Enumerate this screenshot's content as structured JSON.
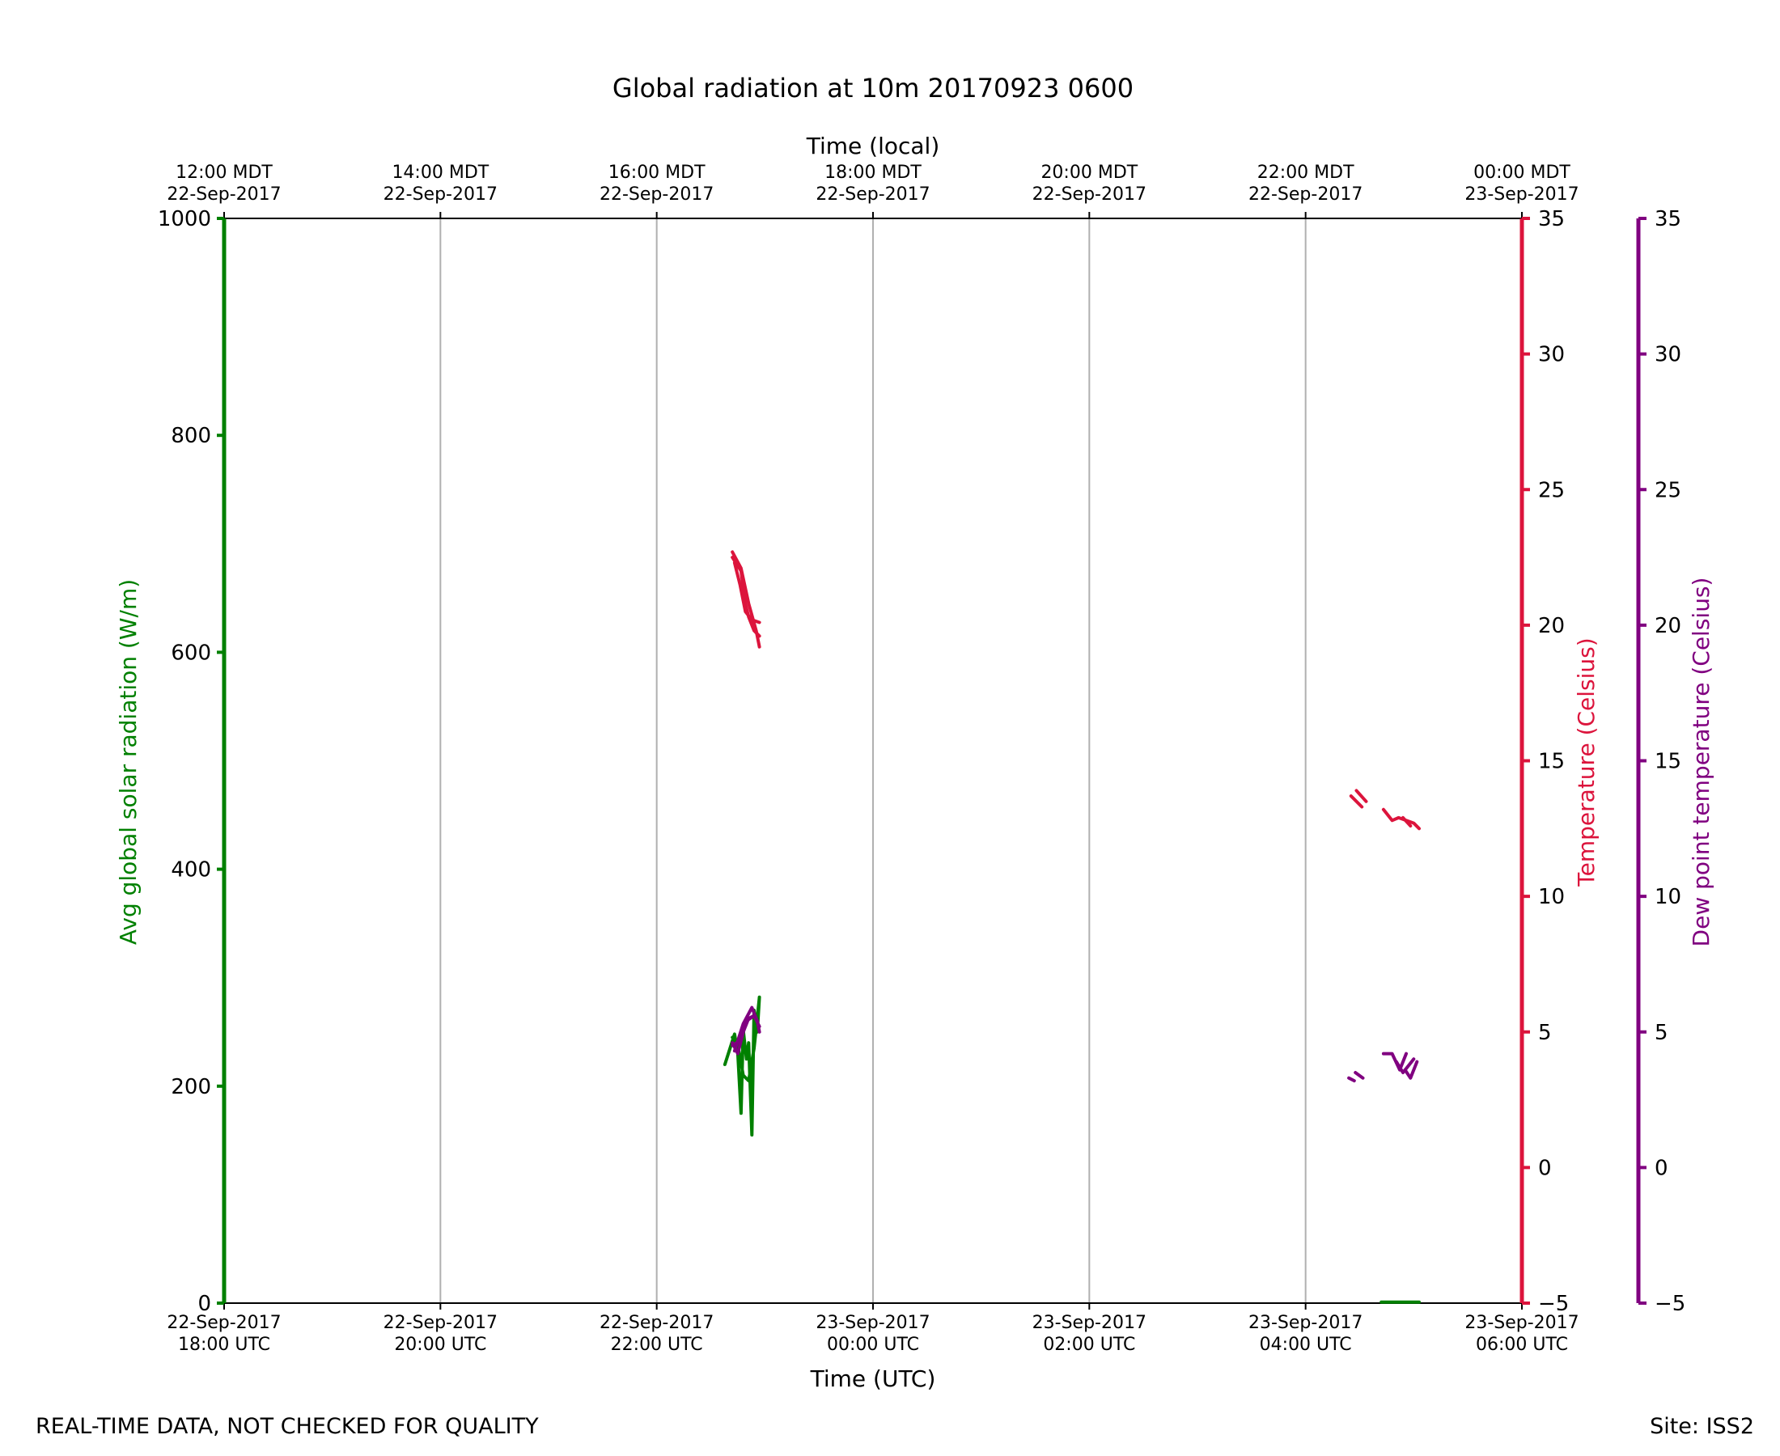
{
  "chart_data": {
    "type": "line",
    "title": "Global radiation at 10m 20170923 0600",
    "x_bottom": {
      "label": "Time (UTC)",
      "range_hours_utc": [
        18,
        30
      ],
      "ticks": [
        {
          "hour": 18,
          "date": "22-Sep-2017",
          "time": "18:00 UTC"
        },
        {
          "hour": 20,
          "date": "22-Sep-2017",
          "time": "20:00 UTC"
        },
        {
          "hour": 22,
          "date": "22-Sep-2017",
          "time": "22:00 UTC"
        },
        {
          "hour": 24,
          "date": "23-Sep-2017",
          "time": "00:00 UTC"
        },
        {
          "hour": 26,
          "date": "23-Sep-2017",
          "time": "02:00 UTC"
        },
        {
          "hour": 28,
          "date": "23-Sep-2017",
          "time": "04:00 UTC"
        },
        {
          "hour": 30,
          "date": "23-Sep-2017",
          "time": "06:00 UTC"
        }
      ]
    },
    "x_top": {
      "label": "Time (local)",
      "ticks": [
        {
          "hour": 18,
          "time": "12:00 MDT",
          "date": "22-Sep-2017"
        },
        {
          "hour": 20,
          "time": "14:00 MDT",
          "date": "22-Sep-2017"
        },
        {
          "hour": 22,
          "time": "16:00 MDT",
          "date": "22-Sep-2017"
        },
        {
          "hour": 24,
          "time": "18:00 MDT",
          "date": "22-Sep-2017"
        },
        {
          "hour": 26,
          "time": "20:00 MDT",
          "date": "22-Sep-2017"
        },
        {
          "hour": 28,
          "time": "22:00 MDT",
          "date": "22-Sep-2017"
        },
        {
          "hour": 30,
          "time": "00:00 MDT",
          "date": "23-Sep-2017"
        }
      ]
    },
    "y_left": {
      "label": "Avg global solar radiation (W/m)",
      "ylim": [
        0,
        1000
      ],
      "ticks": [
        "0",
        "200",
        "400",
        "600",
        "800",
        "1000"
      ],
      "color": "#008000"
    },
    "y_right_temp": {
      "label": "Temperature (Celsius)",
      "ylim": [
        -5,
        35
      ],
      "ticks": [
        "−5",
        "0",
        "5",
        "10",
        "15",
        "20",
        "25",
        "30",
        "35"
      ],
      "color": "#dc143c"
    },
    "y_right_dew": {
      "label": "Dew point temperature (Celsius)",
      "ylim": [
        -5,
        35
      ],
      "ticks": [
        "−5",
        "0",
        "5",
        "10",
        "15",
        "20",
        "25",
        "30",
        "35"
      ],
      "color": "#800080"
    },
    "grid": "vertical",
    "series": [
      {
        "name": "Avg global solar radiation",
        "axis": "y_left",
        "color": "#008000",
        "segments": [
          [
            [
              22.63,
              220
            ],
            [
              22.72,
              248
            ],
            [
              22.75,
              230
            ],
            [
              22.78,
              175
            ],
            [
              22.8,
              252
            ],
            [
              22.83,
              225
            ],
            [
              22.85,
              240
            ],
            [
              22.88,
              155
            ],
            [
              22.9,
              270
            ],
            [
              22.93,
              250
            ],
            [
              22.95,
              282
            ],
            [
              22.9,
              235
            ],
            [
              22.85,
              205
            ],
            [
              22.8,
              210
            ],
            [
              22.75,
              238
            ],
            [
              22.7,
              245
            ]
          ],
          [
            [
              28.7,
              1
            ],
            [
              29.05,
              1
            ]
          ]
        ]
      },
      {
        "name": "Temperature",
        "axis": "y_right_temp",
        "color": "#dc143c",
        "segments": [
          [
            [
              22.7,
              22.5
            ],
            [
              22.78,
              22.0
            ],
            [
              22.82,
              20.8
            ],
            [
              22.85,
              20.3
            ],
            [
              22.9,
              19.8
            ],
            [
              22.95,
              19.6
            ]
          ],
          [
            [
              22.72,
              22.3
            ],
            [
              22.77,
              21.5
            ],
            [
              22.82,
              20.5
            ],
            [
              22.88,
              20.2
            ],
            [
              22.95,
              20.1
            ]
          ],
          [
            [
              22.7,
              22.7
            ],
            [
              22.78,
              22.1
            ],
            [
              22.85,
              20.8
            ],
            [
              22.92,
              19.8
            ],
            [
              22.95,
              19.2
            ]
          ],
          [
            [
              28.42,
              13.7
            ],
            [
              28.52,
              13.3
            ]
          ],
          [
            [
              28.47,
              13.9
            ],
            [
              28.56,
              13.5
            ]
          ],
          [
            [
              28.72,
              13.2
            ],
            [
              28.8,
              12.8
            ],
            [
              28.86,
              12.9
            ],
            [
              28.93,
              12.8
            ],
            [
              29.0,
              12.7
            ],
            [
              29.05,
              12.5
            ]
          ],
          [
            [
              28.9,
              12.9
            ],
            [
              28.97,
              12.6
            ]
          ]
        ]
      },
      {
        "name": "Dew point temperature",
        "axis": "y_right_dew",
        "color": "#800080",
        "segments": [
          [
            [
              22.7,
              4.6
            ],
            [
              22.75,
              4.2
            ],
            [
              22.8,
              5.0
            ],
            [
              22.85,
              5.5
            ],
            [
              22.9,
              5.6
            ],
            [
              22.95,
              5.2
            ]
          ],
          [
            [
              22.72,
              4.3
            ],
            [
              22.8,
              5.3
            ],
            [
              22.88,
              5.9
            ],
            [
              22.93,
              5.4
            ],
            [
              22.95,
              5.0
            ]
          ],
          [
            [
              22.7,
              4.5
            ],
            [
              22.78,
              4.7
            ],
            [
              22.83,
              5.4
            ],
            [
              22.9,
              5.6
            ]
          ],
          [
            [
              28.4,
              3.3
            ],
            [
              28.45,
              3.2
            ]
          ],
          [
            [
              28.46,
              3.5
            ],
            [
              28.53,
              3.3
            ]
          ],
          [
            [
              28.72,
              4.2
            ],
            [
              28.8,
              4.2
            ],
            [
              28.87,
              3.6
            ],
            [
              28.93,
              4.2
            ]
          ],
          [
            [
              28.84,
              3.9
            ],
            [
              28.9,
              3.5
            ],
            [
              28.96,
              3.8
            ],
            [
              29.0,
              4.0
            ]
          ],
          [
            [
              28.92,
              3.6
            ],
            [
              28.97,
              3.3
            ],
            [
              29.03,
              3.9
            ]
          ]
        ]
      }
    ]
  },
  "footer": {
    "left": "REAL-TIME DATA, NOT CHECKED FOR QUALITY",
    "right": "Site: ISS2"
  }
}
